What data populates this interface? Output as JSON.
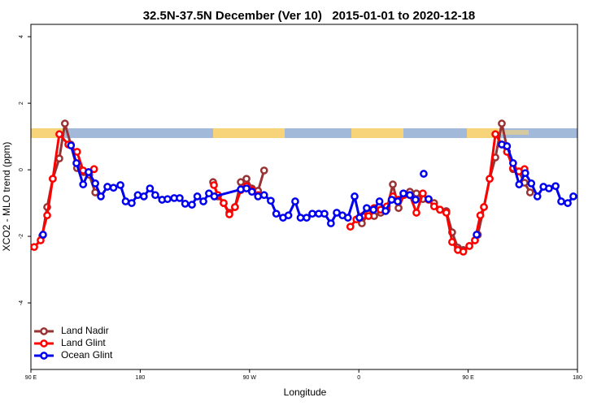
{
  "chart_data": {
    "type": "line",
    "title": "32.5N-37.5N December (Ver 10)   2015-01-01 to 2020-12-18",
    "x_label": "Longitude",
    "y_label": "XCO2 - MLO trend (ppm)",
    "xlim": [
      90,
      540
    ],
    "ylim": [
      -6,
      4.37
    ],
    "xticks": [
      {
        "value": 90,
        "label": "90 E"
      },
      180,
      {
        "value": 270,
        "label": "90 W"
      },
      {
        "value": 360,
        "label": "0"
      },
      {
        "value": 450,
        "label": "90 E"
      },
      180
    ],
    "yticks": [
      -4,
      -2,
      0,
      2,
      4
    ],
    "legend": "bottom-left",
    "series": [
      {
        "name": "Land Nadir",
        "color": "#993333",
        "x": [
          99.4,
          103.4,
          108,
          113.4,
          118,
          122.8,
          128,
          133.5,
          138,
          143,
          null,
          240,
          244,
          248.7,
          253.4,
          258,
          262.8,
          267.5,
          272,
          277,
          282,
          null,
          362.5,
          368,
          372.6,
          378,
          383,
          388,
          392.7,
          397,
          402,
          407.4,
          412.7,
          417.4,
          422,
          426.8,
          432,
          436.8,
          441.5,
          446,
          451,
          455.6,
          458,
          463,
          467.7,
          472.4,
          477.7,
          481.7,
          487,
          491.8,
          496.4,
          501
        ],
        "values": [
          -1.98,
          -1.12,
          -0.27,
          0.34,
          1.39,
          0.76,
          0.05,
          -0.07,
          -0.15,
          -0.68,
          null,
          -0.37,
          -0.8,
          -1.0,
          -1.29,
          -1.12,
          -0.37,
          -0.27,
          -0.56,
          -0.63,
          -0.02,
          null,
          -1.61,
          -1.32,
          -1.39,
          -1.29,
          -1.2,
          -0.44,
          -1.15,
          -0.76,
          -0.66,
          -0.71,
          -0.88,
          -0.88,
          -1.0,
          -1.2,
          -1.24,
          -1.88,
          -2.34,
          -2.41,
          -2.29,
          -2.12,
          -1.95,
          -1.12,
          -0.27,
          0.37,
          1.39,
          0.71,
          0.02,
          -0.05,
          -0.39,
          -0.68
        ]
      },
      {
        "name": "Land Glint",
        "color": "#ff0000",
        "x": [
          92.7,
          98,
          103.4,
          108,
          113.4,
          120.8,
          128,
          133,
          137.5,
          142,
          null,
          240.7,
          244,
          248.7,
          253.4,
          258,
          262.8,
          267.5,
          272,
          277,
          null,
          353,
          358,
          363,
          368,
          372.6,
          378,
          383,
          388,
          392.7,
          397,
          402,
          407.4,
          412.7,
          417.4,
          422,
          426.8,
          432,
          436.8,
          441.5,
          446,
          451,
          455.6,
          460,
          463,
          467.7,
          472.4,
          477.7,
          482,
          487,
          491.8,
          496.4
        ],
        "values": [
          -2.32,
          -2.12,
          -1.37,
          -0.27,
          1.07,
          0.76,
          0.54,
          -0.02,
          -0.07,
          0.02,
          null,
          -0.46,
          -0.76,
          -1.0,
          -1.34,
          -1.12,
          -0.61,
          -0.49,
          -0.61,
          -0.76,
          null,
          -1.71,
          -1.49,
          -1.39,
          -1.39,
          -1.15,
          -1.2,
          -1.1,
          -0.8,
          -0.9,
          -0.76,
          -0.76,
          -1.29,
          -0.71,
          -0.9,
          -1.1,
          -1.2,
          -1.29,
          -2.17,
          -2.41,
          -2.46,
          -2.29,
          -2.12,
          -1.37,
          -1.12,
          -0.27,
          1.07,
          0.76,
          0.54,
          0.05,
          -0.05,
          0.02
        ]
      },
      {
        "name": "Ocean Glint",
        "color": "#0000ee",
        "x": [
          100,
          null,
          123,
          127.5,
          133,
          137.5,
          143,
          147.6,
          153,
          158,
          163.7,
          168,
          173,
          178,
          183,
          188,
          192.4,
          198,
          202.5,
          208,
          212.5,
          217,
          222.6,
          227,
          232,
          236.6,
          241,
          262.8,
          267.5,
          272,
          277,
          282,
          287.5,
          292,
          297.6,
          302,
          307.6,
          312,
          317,
          321.7,
          327,
          331.7,
          337,
          341.8,
          346.5,
          351,
          356.5,
          360.5,
          366.5,
          372,
          377,
          382,
          387,
          392,
          396.7,
          402,
          406.7,
          null,
          413.4,
          null,
          417.4,
          null,
          457,
          null,
          477.7,
          482,
          487,
          492,
          497,
          502,
          507,
          512,
          516.5,
          522,
          526.6,
          532,
          536.6
        ],
        "values": [
          -1.95,
          null,
          0.73,
          0.2,
          -0.44,
          -0.07,
          -0.41,
          -0.8,
          -0.51,
          -0.54,
          -0.46,
          -0.95,
          -1.0,
          -0.76,
          -0.8,
          -0.56,
          -0.76,
          -0.9,
          -0.88,
          -0.85,
          -0.85,
          -1.02,
          -1.05,
          -0.8,
          -0.95,
          -0.71,
          -0.8,
          -0.59,
          -0.56,
          -0.66,
          -0.8,
          -0.76,
          -0.93,
          -1.32,
          -1.44,
          -1.37,
          -0.95,
          -1.44,
          -1.44,
          -1.32,
          -1.32,
          -1.32,
          -1.61,
          -1.29,
          -1.37,
          -1.44,
          -0.8,
          -1.44,
          -1.15,
          -1.2,
          -0.95,
          -1.24,
          -0.9,
          -0.95,
          -0.71,
          -0.76,
          -0.9,
          null,
          -0.12,
          null,
          -0.88,
          null,
          -1.95,
          null,
          0.76,
          0.71,
          0.2,
          -0.44,
          -0.1,
          -0.41,
          -0.8,
          -0.51,
          -0.56,
          -0.49,
          -0.95,
          -1.0,
          -0.8
        ]
      }
    ]
  }
}
